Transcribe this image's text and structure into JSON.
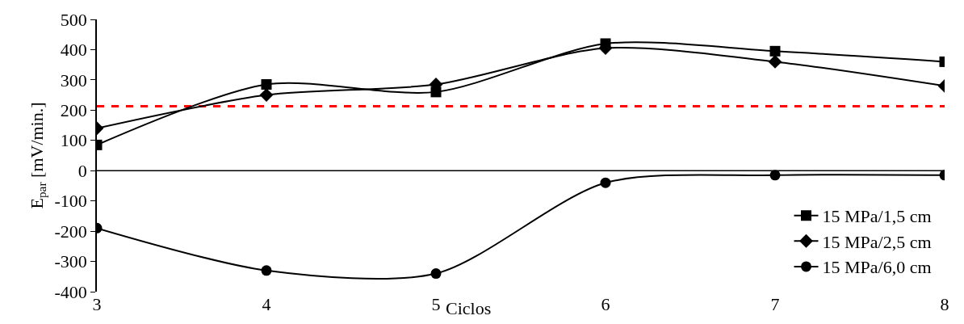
{
  "chart_data": {
    "type": "line",
    "xlabel": "Ciclos",
    "ylabel": "E$_{par}$ [mV/min.]",
    "x": [
      3,
      4,
      5,
      6,
      7,
      8
    ],
    "series": [
      {
        "name": "15 MPa/1,5 cm",
        "color": "#000000",
        "marker": "square",
        "values": [
          85,
          285,
          260,
          420,
          395,
          360
        ]
      },
      {
        "name": "15 MPa/2,5 cm",
        "color": "#000000",
        "marker": "diamond",
        "values": [
          140,
          250,
          285,
          405,
          360,
          280
        ]
      },
      {
        "name": "15 MPa/6,0 cm",
        "color": "#000000",
        "marker": "circle",
        "values": [
          -190,
          -330,
          -340,
          -40,
          -15,
          -15
        ]
      }
    ],
    "xlim": [
      3,
      8
    ],
    "xticks": [
      3,
      4,
      5,
      6,
      7,
      8
    ],
    "ylim": [
      -400,
      500
    ],
    "yticks": [
      -400,
      -300,
      -200,
      -100,
      0,
      100,
      200,
      300,
      400,
      500
    ],
    "ref_lines": [
      {
        "axis": "y",
        "value": 213,
        "color": "#ff0000",
        "line_style": "dashed"
      },
      {
        "axis": "y",
        "value": 0,
        "color": "#000000",
        "line_style": "solid"
      }
    ],
    "grid": false,
    "legend": "bottom right",
    "line_style": "solid"
  }
}
